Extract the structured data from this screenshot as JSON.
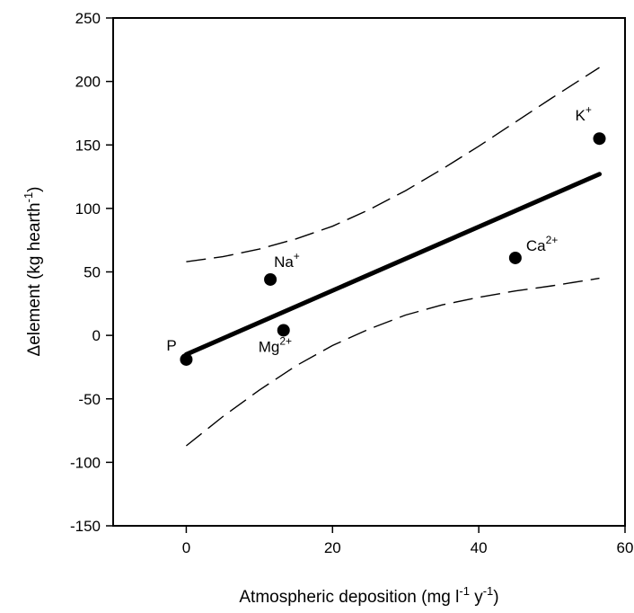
{
  "chart_data": {
    "type": "scatter",
    "title": "",
    "xlabel": "Atmospheric deposition (mg l-1 y-1)",
    "xlabel_parts": [
      {
        "text": "Atmospheric deposition (mg l",
        "sup": false
      },
      {
        "text": "-1",
        "sup": true
      },
      {
        "text": " y",
        "sup": false
      },
      {
        "text": "-1",
        "sup": true
      },
      {
        "text": ")",
        "sup": false
      }
    ],
    "ylabel": "Δelement (kg hearth-1)",
    "ylabel_parts": [
      {
        "text": "Δelement (kg hearth",
        "sup": false
      },
      {
        "text": "-1",
        "sup": true
      },
      {
        "text": ")",
        "sup": false
      }
    ],
    "xlim": [
      -10,
      60
    ],
    "ylim": [
      -150,
      250
    ],
    "xticks": [
      0,
      20,
      40,
      60
    ],
    "yticks": [
      -150,
      -100,
      -50,
      0,
      50,
      100,
      150,
      200,
      250
    ],
    "grid": false,
    "legend": "none",
    "points": [
      {
        "label": "P",
        "base": "P",
        "charge": "",
        "x": 0.0,
        "y": -19
      },
      {
        "label": "Na+",
        "base": "Na",
        "charge": "+",
        "x": 11.5,
        "y": 44
      },
      {
        "label": "Mg2+",
        "base": "Mg",
        "charge": "2+",
        "x": 13.3,
        "y": 4
      },
      {
        "label": "Ca2+",
        "base": "Ca",
        "charge": "2+",
        "x": 45.0,
        "y": 61
      },
      {
        "label": "K+",
        "base": "K",
        "charge": "+",
        "x": 56.5,
        "y": 155
      }
    ],
    "regression": {
      "x_start": 0,
      "x_end": 56.5,
      "y_start": -15,
      "y_end": 127
    },
    "confidence_upper": [
      [
        0,
        58
      ],
      [
        5,
        62
      ],
      [
        10,
        68
      ],
      [
        15,
        76
      ],
      [
        20,
        86
      ],
      [
        25,
        99
      ],
      [
        30,
        114
      ],
      [
        35,
        131
      ],
      [
        40,
        149
      ],
      [
        45,
        168
      ],
      [
        50,
        187
      ],
      [
        56.5,
        211
      ]
    ],
    "confidence_lower": [
      [
        0,
        -87
      ],
      [
        5,
        -64
      ],
      [
        10,
        -43
      ],
      [
        15,
        -24
      ],
      [
        20,
        -8
      ],
      [
        25,
        5
      ],
      [
        30,
        16
      ],
      [
        35,
        24
      ],
      [
        40,
        30
      ],
      [
        45,
        35
      ],
      [
        50,
        39
      ],
      [
        56.5,
        45
      ]
    ],
    "colors": {
      "marks": "#000000",
      "background": "#ffffff"
    }
  }
}
